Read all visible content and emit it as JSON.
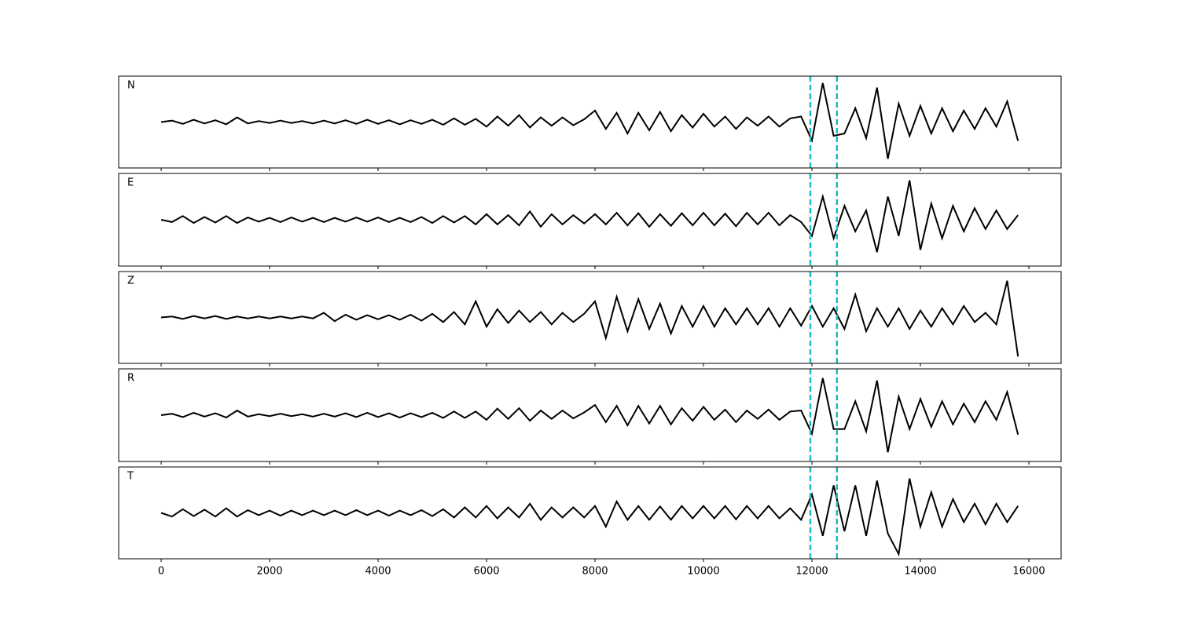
{
  "chart_data": {
    "type": "line",
    "x": [
      0,
      200,
      400,
      600,
      800,
      1000,
      1200,
      1400,
      1600,
      1800,
      2000,
      2200,
      2400,
      2600,
      2800,
      3000,
      3200,
      3400,
      3600,
      3800,
      4000,
      4200,
      4400,
      4600,
      4800,
      5000,
      5200,
      5400,
      5600,
      5800,
      6000,
      6200,
      6400,
      6600,
      6800,
      7000,
      7200,
      7400,
      7600,
      7800,
      8000,
      8200,
      8400,
      8600,
      8800,
      9000,
      9200,
      9400,
      9600,
      9800,
      10000,
      10200,
      10400,
      10600,
      10800,
      11000,
      11200,
      11400,
      11600,
      11800,
      12000,
      12200,
      12400,
      12600,
      12800,
      13000,
      13200,
      13400,
      13600,
      13800,
      14000,
      14200,
      14400,
      14600,
      14800,
      15000,
      15200,
      15400,
      15600,
      15800
    ],
    "series": [
      {
        "name": "N",
        "color": "#000000",
        "values": [
          0,
          0.03,
          -0.04,
          0.05,
          -0.03,
          0.04,
          -0.05,
          0.1,
          -0.03,
          0.02,
          -0.02,
          0.03,
          -0.02,
          0.02,
          -0.03,
          0.03,
          -0.03,
          0.04,
          -0.04,
          0.05,
          -0.04,
          0.04,
          -0.05,
          0.04,
          -0.04,
          0.05,
          -0.06,
          0.08,
          -0.06,
          0.07,
          -0.1,
          0.12,
          -0.08,
          0.15,
          -0.12,
          0.1,
          -0.08,
          0.1,
          -0.07,
          0.06,
          0.25,
          -0.15,
          0.2,
          -0.25,
          0.2,
          -0.18,
          0.22,
          -0.2,
          0.15,
          -0.12,
          0.18,
          -0.1,
          0.12,
          -0.15,
          0.1,
          -0.08,
          0.12,
          -0.1,
          0.08,
          0.12,
          -0.4,
          0.85,
          -0.3,
          -0.25,
          0.3,
          -0.35,
          0.75,
          -0.8,
          0.4,
          -0.3,
          0.35,
          -0.25,
          0.3,
          -0.2,
          0.25,
          -0.15,
          0.3,
          -0.1,
          0.45,
          -0.41
        ]
      },
      {
        "name": "E",
        "color": "#000000",
        "values": [
          0,
          -0.05,
          0.08,
          -0.07,
          0.06,
          -0.06,
          0.08,
          -0.07,
          0.05,
          -0.04,
          0.04,
          -0.05,
          0.05,
          -0.04,
          0.04,
          -0.05,
          0.04,
          -0.04,
          0.05,
          -0.04,
          0.05,
          -0.05,
          0.04,
          -0.05,
          0.06,
          -0.07,
          0.08,
          -0.06,
          0.08,
          -0.1,
          0.12,
          -0.1,
          0.1,
          -0.12,
          0.18,
          -0.15,
          0.12,
          -0.1,
          0.1,
          -0.08,
          0.12,
          -0.1,
          0.15,
          -0.12,
          0.14,
          -0.15,
          0.12,
          -0.13,
          0.14,
          -0.12,
          0.15,
          -0.12,
          0.13,
          -0.14,
          0.15,
          -0.1,
          0.15,
          -0.12,
          0.1,
          -0.05,
          -0.35,
          0.5,
          -0.4,
          0.3,
          -0.25,
          0.2,
          -0.7,
          0.5,
          -0.35,
          0.85,
          -0.65,
          0.35,
          -0.4,
          0.3,
          -0.25,
          0.25,
          -0.2,
          0.2,
          -0.2,
          0.1
        ]
      },
      {
        "name": "Z",
        "color": "#000000",
        "values": [
          0,
          0.02,
          -0.03,
          0.03,
          -0.02,
          0.03,
          -0.03,
          0.02,
          -0.02,
          0.02,
          -0.02,
          0.02,
          -0.02,
          0.02,
          -0.02,
          0.1,
          -0.08,
          0.06,
          -0.05,
          0.05,
          -0.04,
          0.05,
          -0.05,
          0.06,
          -0.07,
          0.08,
          -0.1,
          0.12,
          -0.15,
          0.35,
          -0.2,
          0.18,
          -0.12,
          0.15,
          -0.1,
          0.12,
          -0.15,
          0.1,
          -0.1,
          0.08,
          0.35,
          -0.45,
          0.45,
          -0.3,
          0.4,
          -0.25,
          0.3,
          -0.35,
          0.25,
          -0.2,
          0.25,
          -0.2,
          0.2,
          -0.15,
          0.2,
          -0.15,
          0.2,
          -0.2,
          0.2,
          -0.18,
          0.25,
          -0.2,
          0.2,
          -0.25,
          0.5,
          -0.3,
          0.2,
          -0.2,
          0.2,
          -0.25,
          0.15,
          -0.2,
          0.2,
          -0.15,
          0.25,
          -0.1,
          0.1,
          -0.15,
          0.8,
          -0.85
        ]
      },
      {
        "name": "R",
        "color": "#000000",
        "values": [
          0,
          0.03,
          -0.04,
          0.05,
          -0.03,
          0.04,
          -0.05,
          0.1,
          -0.03,
          0.02,
          -0.02,
          0.03,
          -0.02,
          0.02,
          -0.03,
          0.03,
          -0.03,
          0.04,
          -0.04,
          0.05,
          -0.04,
          0.04,
          -0.05,
          0.04,
          -0.04,
          0.05,
          -0.06,
          0.08,
          -0.06,
          0.08,
          -0.1,
          0.14,
          -0.08,
          0.15,
          -0.12,
          0.1,
          -0.08,
          0.1,
          -0.07,
          0.06,
          0.22,
          -0.15,
          0.2,
          -0.22,
          0.2,
          -0.18,
          0.2,
          -0.2,
          0.15,
          -0.12,
          0.18,
          -0.1,
          0.12,
          -0.15,
          0.1,
          -0.08,
          0.12,
          -0.1,
          0.08,
          0.1,
          -0.4,
          0.8,
          -0.3,
          -0.3,
          0.3,
          -0.35,
          0.75,
          -0.8,
          0.4,
          -0.3,
          0.35,
          -0.25,
          0.3,
          -0.2,
          0.25,
          -0.15,
          0.3,
          -0.1,
          0.5,
          -0.42
        ]
      },
      {
        "name": "T",
        "color": "#000000",
        "values": [
          0,
          -0.08,
          0.08,
          -0.07,
          0.07,
          -0.08,
          0.1,
          -0.08,
          0.06,
          -0.05,
          0.05,
          -0.06,
          0.05,
          -0.05,
          0.05,
          -0.05,
          0.05,
          -0.05,
          0.06,
          -0.05,
          0.05,
          -0.06,
          0.05,
          -0.05,
          0.06,
          -0.07,
          0.08,
          -0.1,
          0.12,
          -0.1,
          0.15,
          -0.12,
          0.12,
          -0.1,
          0.2,
          -0.15,
          0.12,
          -0.1,
          0.12,
          -0.1,
          0.15,
          -0.3,
          0.25,
          -0.15,
          0.15,
          -0.15,
          0.14,
          -0.15,
          0.15,
          -0.12,
          0.15,
          -0.12,
          0.15,
          -0.14,
          0.15,
          -0.12,
          0.15,
          -0.12,
          0.1,
          -0.15,
          0.4,
          -0.5,
          0.6,
          -0.4,
          0.6,
          -0.5,
          0.7,
          -0.45,
          -0.9,
          0.75,
          -0.3,
          0.45,
          -0.3,
          0.3,
          -0.2,
          0.2,
          -0.25,
          0.2,
          -0.2,
          0.15
        ]
      }
    ],
    "xlim": [
      -783,
      16594
    ],
    "xticks": [
      0,
      2000,
      4000,
      6000,
      8000,
      10000,
      12000,
      14000,
      16000
    ],
    "ylim": [
      -1,
      1
    ],
    "vlines": [
      11970,
      12460
    ],
    "vline_color": "#17bfbf"
  }
}
